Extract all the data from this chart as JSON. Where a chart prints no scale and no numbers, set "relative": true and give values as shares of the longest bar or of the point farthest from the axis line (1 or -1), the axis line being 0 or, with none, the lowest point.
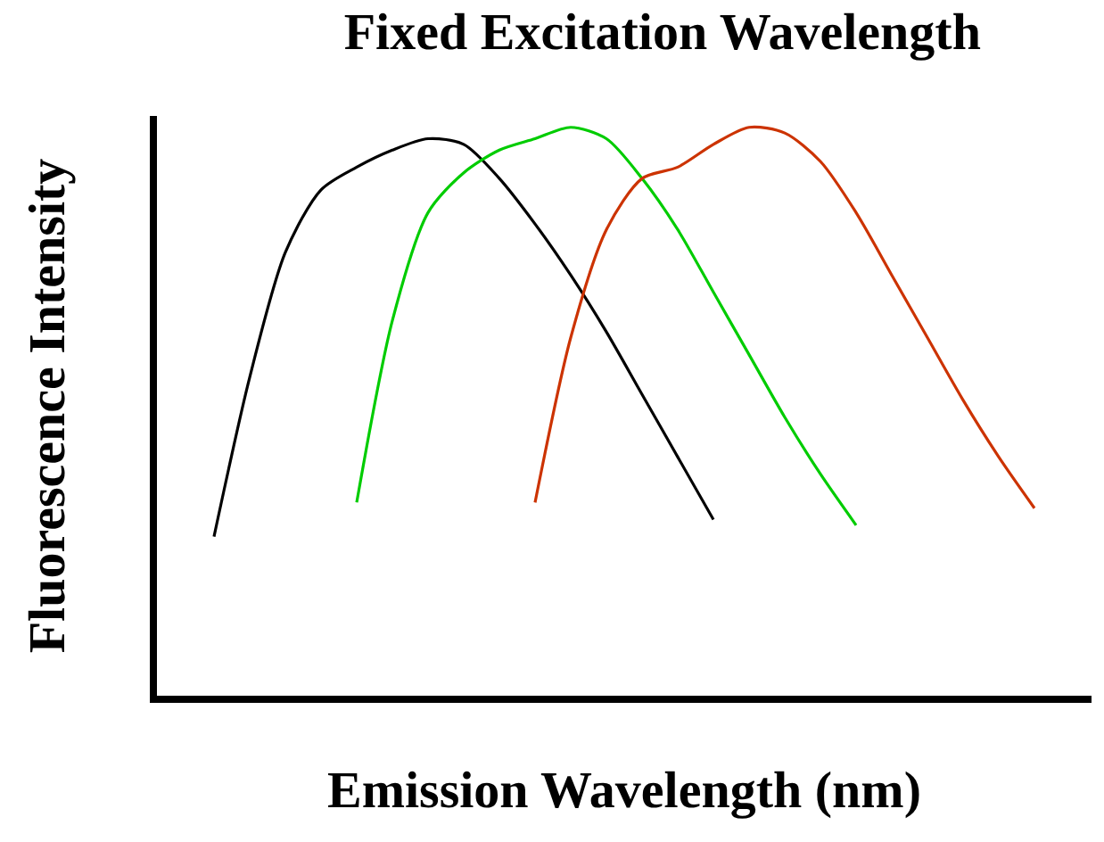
{
  "chart_data": {
    "type": "line",
    "relative": true,
    "title": "Fixed Excitation Wavelength",
    "xlabel": "Emission Wavelength (nm)",
    "ylabel": "Fluorescence Intensity",
    "categories": [
      null,
      null,
      null,
      null,
      null,
      null,
      null,
      null,
      null,
      null,
      null,
      null,
      null,
      null,
      null,
      null,
      null,
      null,
      null,
      null,
      null,
      null,
      null,
      null,
      null,
      null
    ],
    "series": [
      {
        "color": "#000000",
        "values": [
          null,
          0.28,
          0.56,
          0.78,
          0.89,
          0.93,
          0.96,
          0.98,
          0.97,
          0.91,
          0.83,
          0.74,
          0.64,
          0.53,
          0.42,
          0.31,
          null,
          null,
          null,
          null,
          null,
          null,
          null,
          null,
          null,
          null
        ]
      },
      {
        "color": "#00cc00",
        "values": [
          null,
          null,
          null,
          null,
          null,
          0.34,
          0.66,
          0.85,
          0.92,
          0.96,
          0.98,
          1.0,
          0.98,
          0.91,
          0.82,
          0.71,
          0.6,
          0.49,
          0.39,
          0.3,
          null,
          null,
          null,
          null,
          null,
          null
        ]
      },
      {
        "color": "#cc3300",
        "values": [
          null,
          null,
          null,
          null,
          null,
          null,
          null,
          null,
          null,
          null,
          0.34,
          0.63,
          0.82,
          0.91,
          0.93,
          0.97,
          1.0,
          0.99,
          0.94,
          0.85,
          0.74,
          0.63,
          0.52,
          0.42,
          0.33,
          null
        ]
      }
    ],
    "marker": "none",
    "line_style": "solid"
  }
}
